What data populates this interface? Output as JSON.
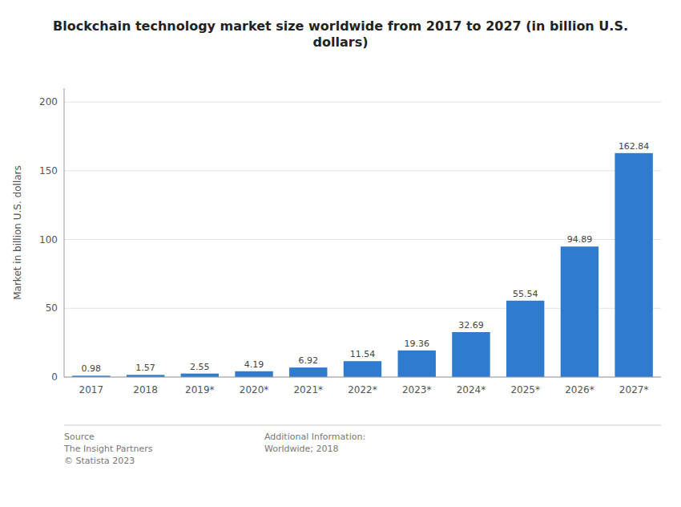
{
  "chart_data": {
    "type": "bar",
    "title": "Blockchain technology market size worldwide from 2017 to 2027 (in billion U.S.\ndollars)",
    "categories": [
      "2017",
      "2018",
      "2019*",
      "2020*",
      "2021*",
      "2022*",
      "2023*",
      "2024*",
      "2025*",
      "2026*",
      "2027*"
    ],
    "values": [
      0.98,
      1.57,
      2.55,
      4.19,
      6.92,
      11.54,
      19.36,
      32.69,
      55.54,
      94.89,
      162.84
    ],
    "color": "#2e7bcf",
    "y_label": "Market in billion U.S. dollars",
    "ylim": [
      0,
      210
    ],
    "yticks": [
      0,
      50,
      100,
      150,
      200
    ],
    "grid": true,
    "data_labels": true,
    "annotations": [
      "Source\nThe Insight Partners\n© Statista 2023",
      "Additional Information:\nWorldwide; 2018"
    ]
  }
}
